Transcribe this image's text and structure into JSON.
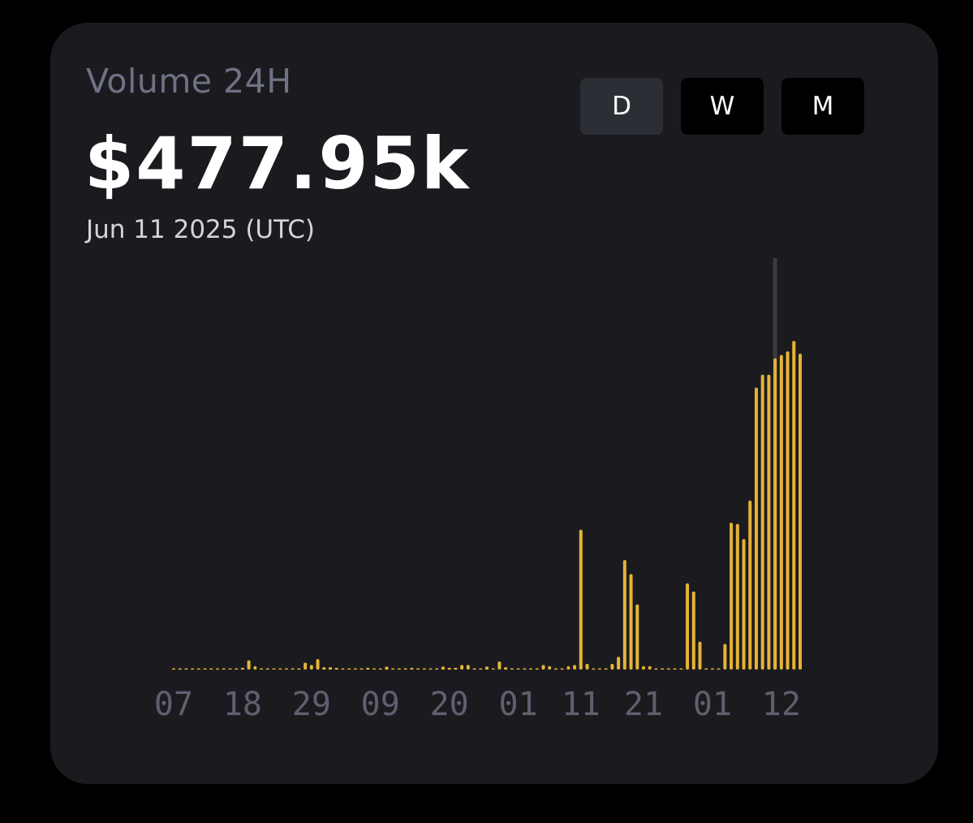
{
  "header": {
    "metric_label": "Volume 24H",
    "metric_value": "$477.95k",
    "date": "Jun 11 2025 (UTC)"
  },
  "period_toggle": {
    "options": [
      "D",
      "W",
      "M"
    ],
    "selected": "D"
  },
  "colors": {
    "bar": "#e5b337",
    "hover_line": "#3a3c42",
    "tick_label": "#5e6070",
    "card_bg": "#1b1b1f"
  },
  "chart_data": {
    "type": "bar",
    "title": "",
    "xlabel": "",
    "ylabel": "",
    "x_tick_labels": [
      "07",
      "18",
      "29",
      "09",
      "20",
      "01",
      "11",
      "21",
      "01",
      "12"
    ],
    "x_tick_indices": [
      0,
      11,
      22,
      33,
      44,
      55,
      65,
      75,
      86,
      97
    ],
    "selected_index": 96,
    "grid": false,
    "y_axis_visible": false,
    "values": [
      0,
      0,
      0,
      0,
      0,
      0,
      0,
      0,
      0,
      0,
      0.5,
      1.5,
      8,
      3,
      1,
      0.3,
      0.3,
      0.3,
      0.3,
      0.3,
      0.3,
      6,
      4,
      9,
      2,
      2,
      1.5,
      1,
      1,
      0.3,
      0.3,
      1.5,
      0.3,
      0.3,
      2.5,
      0.5,
      0.3,
      0.3,
      1.5,
      0.3,
      0.3,
      0.3,
      1,
      2.5,
      1.5,
      1.5,
      4,
      4,
      0.5,
      0.3,
      2.5,
      1,
      7,
      2,
      1,
      1,
      0.5,
      0.3,
      0.3,
      4,
      3,
      0.3,
      1,
      3,
      4,
      120,
      5,
      1,
      0.5,
      0.3,
      5,
      11,
      94,
      82,
      56,
      3,
      3,
      0.3,
      0.3,
      0.3,
      0.3,
      0.3,
      74,
      67,
      24,
      0.3,
      0.3,
      0.3,
      22,
      126,
      125,
      112,
      145,
      242,
      253,
      253,
      267,
      270,
      273,
      282,
      271
    ]
  }
}
